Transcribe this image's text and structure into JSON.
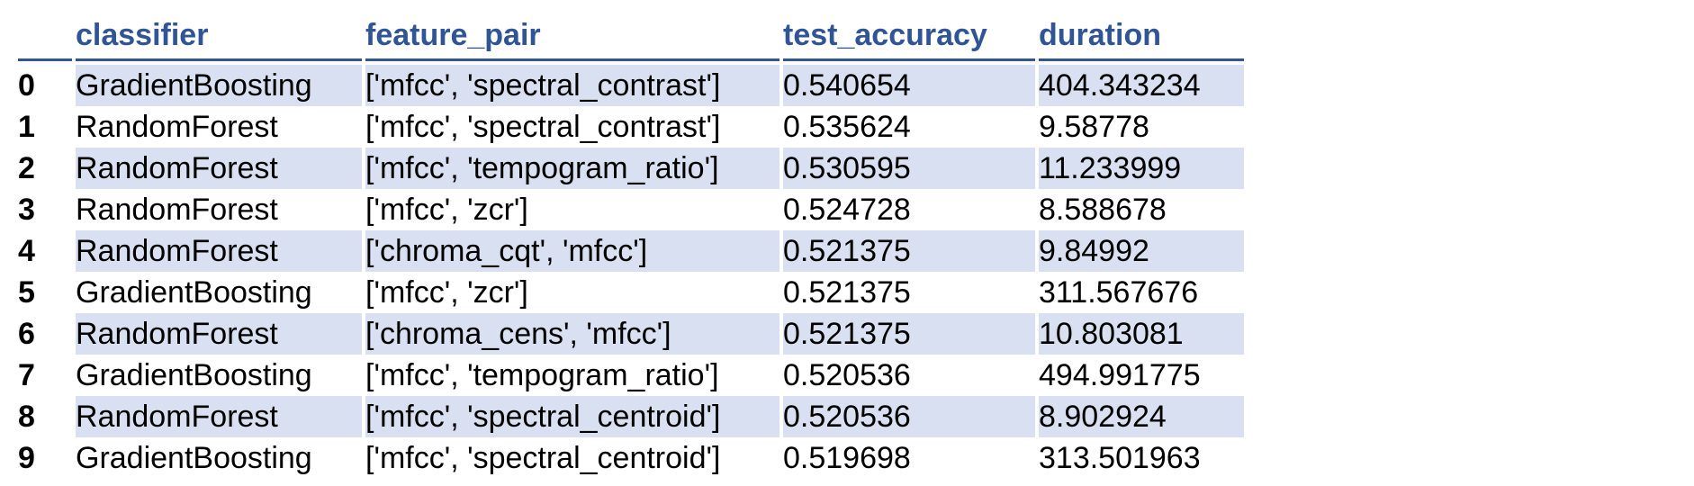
{
  "table": {
    "columns": [
      "classifier",
      "feature_pair",
      "test_accuracy",
      "duration"
    ],
    "rows": [
      {
        "index": "0",
        "classifier": "GradientBoosting",
        "feature_pair": "['mfcc', 'spectral_contrast']",
        "test_accuracy": "0.540654",
        "duration": "404.343234"
      },
      {
        "index": "1",
        "classifier": "RandomForest",
        "feature_pair": "['mfcc', 'spectral_contrast']",
        "test_accuracy": "0.535624",
        "duration": "9.58778"
      },
      {
        "index": "2",
        "classifier": "RandomForest",
        "feature_pair": "['mfcc', 'tempogram_ratio']",
        "test_accuracy": "0.530595",
        "duration": "11.233999"
      },
      {
        "index": "3",
        "classifier": "RandomForest",
        "feature_pair": "['mfcc', 'zcr']",
        "test_accuracy": "0.524728",
        "duration": "8.588678"
      },
      {
        "index": "4",
        "classifier": "RandomForest",
        "feature_pair": "['chroma_cqt', 'mfcc']",
        "test_accuracy": "0.521375",
        "duration": "9.84992"
      },
      {
        "index": "5",
        "classifier": "GradientBoosting",
        "feature_pair": "['mfcc', 'zcr']",
        "test_accuracy": "0.521375",
        "duration": "311.567676"
      },
      {
        "index": "6",
        "classifier": "RandomForest",
        "feature_pair": "['chroma_cens', 'mfcc']",
        "test_accuracy": "0.521375",
        "duration": "10.803081"
      },
      {
        "index": "7",
        "classifier": "GradientBoosting",
        "feature_pair": "['mfcc', 'tempogram_ratio']",
        "test_accuracy": "0.520536",
        "duration": "494.991775"
      },
      {
        "index": "8",
        "classifier": "RandomForest",
        "feature_pair": "['mfcc', 'spectral_centroid']",
        "test_accuracy": "0.520536",
        "duration": "8.902924"
      },
      {
        "index": "9",
        "classifier": "GradientBoosting",
        "feature_pair": "['mfcc', 'spectral_centroid']",
        "test_accuracy": "0.519698",
        "duration": "313.501963"
      }
    ]
  },
  "colors": {
    "header_text": "#2f5597",
    "row_shade": "#d9e0f1"
  }
}
